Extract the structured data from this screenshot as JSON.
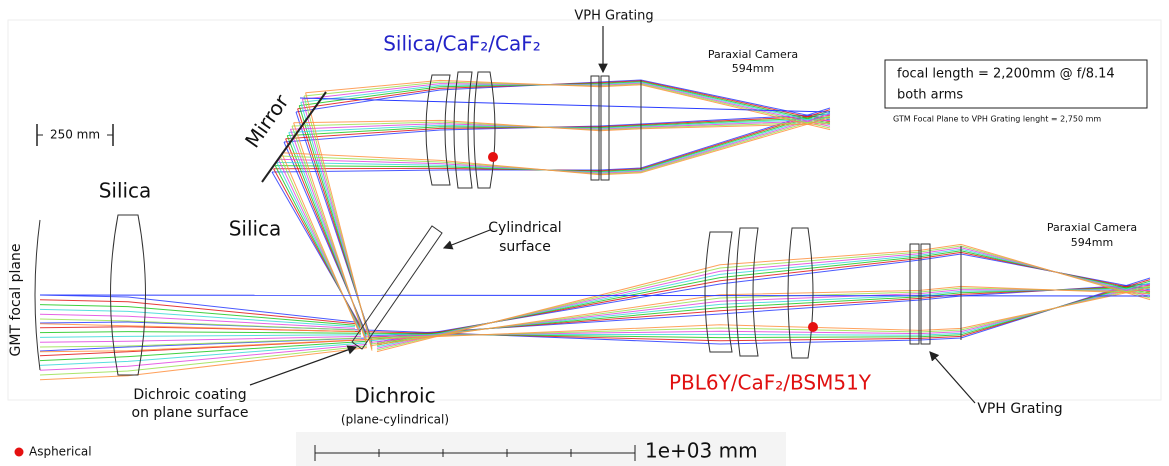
{
  "labels": {
    "top_grating": "VPH Grating",
    "upper_glasses": "Silica/CaF₂/CaF₂",
    "upper_camera": "Paraxial Camera",
    "upper_camera_length": "594mm",
    "info_focal": "focal length = 2,200mm @ f/8.14",
    "info_arms": "both arms",
    "grating_length": "GTM Focal Plane to VPH Grating lenght  = 2,750 mm",
    "scale_bar": "250 mm",
    "mirror": "Mirror",
    "field_lens": "Silica",
    "dichroic_glass": "Silica",
    "focal_plane": "GMT focal plane",
    "cylindrical_1": "Cylindrical",
    "cylindrical_2": "surface",
    "lower_camera": "Paraxial Camera",
    "lower_camera_length": "594mm",
    "coating_1": "Dichroic coating",
    "coating_2": "on plane surface",
    "dichroic": "Dichroic",
    "dichroic_note": "(plane-cylindrical)",
    "lower_glasses": "PBL6Y/CaF₂/BSM51Y",
    "bottom_grating": "VPH Grating",
    "legend": "Aspherical",
    "scale": "1e+03 mm"
  }
}
